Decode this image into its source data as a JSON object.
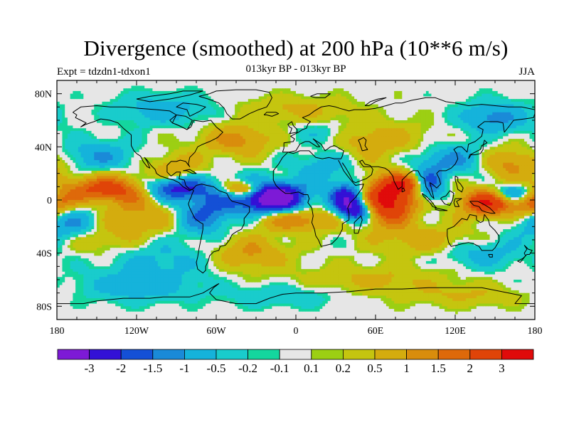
{
  "chart_data": {
    "type": "heatmap",
    "title": "Divergence (smoothed) at 200 hPa (10**6 m/s)",
    "left_label": "Expt = tdzdn1-tdxon1",
    "center_label": "013kyr BP - 013kyr BP",
    "right_label": "JJA",
    "x_range": [
      -180,
      180
    ],
    "y_range": [
      -90,
      90
    ],
    "x_ticks": [
      {
        "value": -180,
        "label": "180"
      },
      {
        "value": -120,
        "label": "120W"
      },
      {
        "value": -60,
        "label": "60W"
      },
      {
        "value": 0,
        "label": "0"
      },
      {
        "value": 60,
        "label": "60E"
      },
      {
        "value": 120,
        "label": "120E"
      },
      {
        "value": 180,
        "label": "180"
      }
    ],
    "y_ticks": [
      {
        "value": 80,
        "label": "80N"
      },
      {
        "value": 40,
        "label": "40N"
      },
      {
        "value": 0,
        "label": "0"
      },
      {
        "value": -40,
        "label": "40S"
      },
      {
        "value": -80,
        "label": "80S"
      }
    ],
    "colorbar": {
      "colors": [
        "#7d1ad6",
        "#3311d6",
        "#1450d6",
        "#1a8ad8",
        "#15b3db",
        "#19cccc",
        "#14d69e",
        "#e6e6e6",
        "#9ccf13",
        "#c5c50f",
        "#d4ac0e",
        "#d98d0c",
        "#de690a",
        "#e04408",
        "#e00b0b"
      ],
      "labels": [
        {
          "boundary": 1,
          "label": "-3"
        },
        {
          "boundary": 2,
          "label": "-2"
        },
        {
          "boundary": 3,
          "label": "-1.5"
        },
        {
          "boundary": 4,
          "label": "-1"
        },
        {
          "boundary": 5,
          "label": "-0.5"
        },
        {
          "boundary": 6,
          "label": "-0.2"
        },
        {
          "boundary": 7,
          "label": "-0.1"
        },
        {
          "boundary": 8,
          "label": "0.1"
        },
        {
          "boundary": 9,
          "label": "0.2"
        },
        {
          "boundary": 10,
          "label": "0.5"
        },
        {
          "boundary": 11,
          "label": "1"
        },
        {
          "boundary": 12,
          "label": "1.5"
        },
        {
          "boundary": 13,
          "label": "2"
        },
        {
          "boundary": 14,
          "label": "3"
        }
      ]
    },
    "field_features": [
      {
        "lon": -15,
        "lat": 2,
        "amp": -3.6,
        "sx": 15,
        "sy": 7
      },
      {
        "lon": -35,
        "lat": 0,
        "amp": -1.2,
        "sx": 25,
        "sy": 10
      },
      {
        "lon": 70,
        "lat": 0,
        "amp": 3.6,
        "sx": 14,
        "sy": 12
      },
      {
        "lon": 45,
        "lat": -8,
        "amp": -2.8,
        "sx": 9,
        "sy": 6
      },
      {
        "lon": 38,
        "lat": 3,
        "amp": -2.4,
        "sx": 9,
        "sy": 7
      },
      {
        "lon": 100,
        "lat": 11,
        "amp": -2.2,
        "sx": 8,
        "sy": 8
      },
      {
        "lon": 85,
        "lat": 12,
        "amp": 1.6,
        "sx": 12,
        "sy": 5
      },
      {
        "lon": 165,
        "lat": 5,
        "amp": -2.2,
        "sx": 12,
        "sy": 5
      },
      {
        "lon": 145,
        "lat": -2,
        "amp": 3.0,
        "sx": 15,
        "sy": 7
      },
      {
        "lon": 178,
        "lat": -2,
        "amp": 1.8,
        "sx": 10,
        "sy": 7
      },
      {
        "lon": -140,
        "lat": 8,
        "amp": 2.4,
        "sx": 28,
        "sy": 7
      },
      {
        "lon": -100,
        "lat": 9,
        "amp": -2.2,
        "sx": 15,
        "sy": 6
      },
      {
        "lon": -80,
        "lat": 9,
        "amp": -1.4,
        "sx": 14,
        "sy": 7
      },
      {
        "lon": -70,
        "lat": -12,
        "amp": -1.4,
        "sx": 14,
        "sy": 10
      },
      {
        "lon": -40,
        "lat": 8,
        "amp": 2.3,
        "sx": 10,
        "sy": 4
      },
      {
        "lon": 0,
        "lat": -15,
        "amp": 1.6,
        "sx": 22,
        "sy": 6
      },
      {
        "lon": -170,
        "lat": -18,
        "amp": -1.2,
        "sx": 18,
        "sy": 10
      },
      {
        "lon": -120,
        "lat": -12,
        "amp": 1.0,
        "sx": 22,
        "sy": 10
      },
      {
        "lon": -90,
        "lat": 22,
        "amp": 1.0,
        "sx": 15,
        "sy": 9
      },
      {
        "lon": -35,
        "lat": -40,
        "amp": 1.1,
        "sx": 20,
        "sy": 9
      },
      {
        "lon": 20,
        "lat": 25,
        "amp": -0.8,
        "sx": 15,
        "sy": 9
      },
      {
        "lon": 120,
        "lat": 30,
        "amp": -1.2,
        "sx": 22,
        "sy": 8
      },
      {
        "lon": 160,
        "lat": 28,
        "amp": 1.4,
        "sx": 18,
        "sy": 8
      },
      {
        "lon": -150,
        "lat": 33,
        "amp": -1.0,
        "sx": 20,
        "sy": 8
      },
      {
        "lon": -45,
        "lat": 45,
        "amp": 1.2,
        "sx": 18,
        "sy": 8
      },
      {
        "lon": 60,
        "lat": 45,
        "amp": 0.8,
        "sx": 28,
        "sy": 10
      },
      {
        "lon": 150,
        "lat": 62,
        "amp": -1.2,
        "sx": 18,
        "sy": 8
      },
      {
        "lon": -100,
        "lat": 68,
        "amp": -0.8,
        "sx": 25,
        "sy": 8
      },
      {
        "lon": 0,
        "lat": 68,
        "amp": 0.6,
        "sx": 30,
        "sy": 7
      },
      {
        "lon": 100,
        "lat": -30,
        "amp": 0.8,
        "sx": 28,
        "sy": 8
      },
      {
        "lon": 140,
        "lat": -40,
        "amp": -0.8,
        "sx": 22,
        "sy": 8
      },
      {
        "lon": -100,
        "lat": -45,
        "amp": -0.6,
        "sx": 30,
        "sy": 10
      },
      {
        "lon": 60,
        "lat": -60,
        "amp": 0.6,
        "sx": 40,
        "sy": 8
      },
      {
        "lon": -120,
        "lat": -65,
        "amp": -0.8,
        "sx": 30,
        "sy": 8
      },
      {
        "lon": 130,
        "lat": -72,
        "amp": 0.5,
        "sx": 30,
        "sy": 6
      },
      {
        "lon": -10,
        "lat": -72,
        "amp": -0.5,
        "sx": 30,
        "sy": 6
      },
      {
        "lon": -150,
        "lat": -30,
        "amp": 0.7,
        "sx": 20,
        "sy": 8
      },
      {
        "lon": 20,
        "lat": 50,
        "amp": -0.6,
        "sx": 15,
        "sy": 6
      }
    ]
  }
}
